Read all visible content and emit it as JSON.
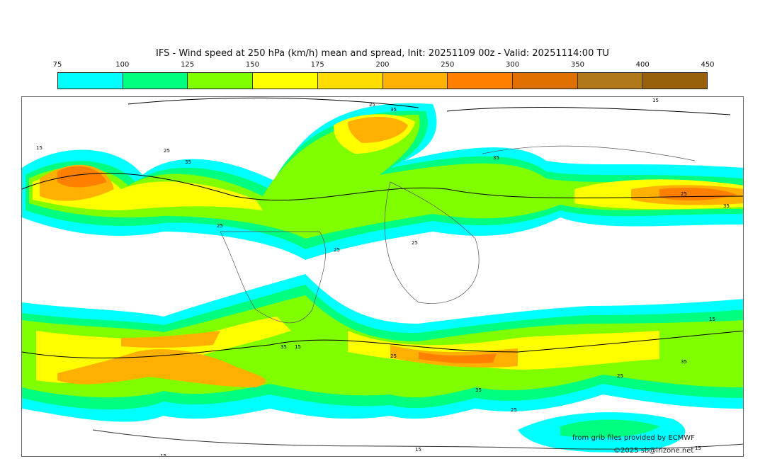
{
  "title": "IFS - Wind speed at 250 hPa (km/h) mean and spread, Init: 20251109 00z - Valid: 20251114:00 TU",
  "colorbar": {
    "ticks": [
      "75",
      "100",
      "125",
      "150",
      "175",
      "200",
      "250",
      "300",
      "350",
      "400",
      "450"
    ],
    "colors": [
      "#00ffff",
      "#00ff80",
      "#80ff00",
      "#ffff00",
      "#ffdd00",
      "#ffb000",
      "#ff8000",
      "#e07000",
      "#b07818",
      "#98600a"
    ]
  },
  "contour_labels": [
    "25",
    "35",
    "15",
    "25",
    "35",
    "35",
    "25",
    "35",
    "25",
    "15",
    "25",
    "25",
    "35",
    "15",
    "25",
    "25",
    "35",
    "15",
    "15",
    "35",
    "25",
    "15",
    "15"
  ],
  "credits": {
    "source": "from grib files provided by ECMWF",
    "copyright": "©2025 sb@irizone.net"
  }
}
